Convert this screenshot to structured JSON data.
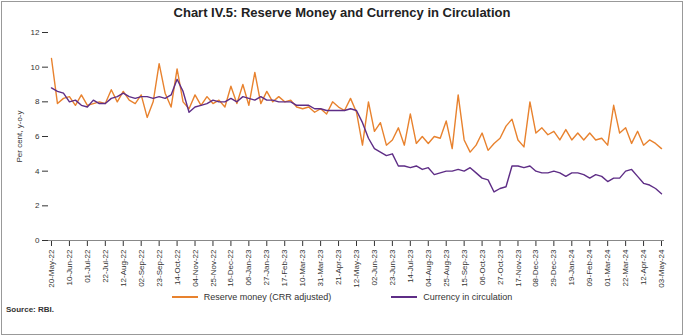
{
  "chart_data": {
    "type": "line",
    "title": "Chart IV.5: Reserve Money and Currency in Circulation",
    "y_label": "Per cent, y-o-y",
    "source": "Source: RBI.",
    "categories": [
      "20-May-22",
      null,
      null,
      "10-Jun-22",
      null,
      null,
      "01-Jul-22",
      null,
      null,
      "22-Jul-22",
      null,
      null,
      "12-Aug-22",
      null,
      null,
      "02-Sep-22",
      null,
      null,
      "23-Sep-22",
      null,
      null,
      "14-Oct-22",
      null,
      null,
      "04-Nov-22",
      null,
      null,
      "25-Nov-22",
      null,
      null,
      "16-Dec-22",
      null,
      null,
      "06-Jan-23",
      null,
      null,
      "27-Jan-23",
      null,
      null,
      "17-Feb-23",
      null,
      null,
      "10-Mar-23",
      null,
      null,
      "31-Mar-23",
      null,
      null,
      "21-Apr-23",
      null,
      null,
      "12-May-23",
      null,
      null,
      "02-Jun-23",
      null,
      null,
      "23-Jun-23",
      null,
      null,
      "14-Jul-23",
      null,
      null,
      "04-Aug-23",
      null,
      null,
      "25-Aug-23",
      null,
      null,
      "15-Sep-23",
      null,
      null,
      "06-Oct-23",
      null,
      null,
      "27-Oct-23",
      null,
      null,
      "17-Nov-23",
      null,
      null,
      "08-Dec-23",
      null,
      null,
      "29-Dec-23",
      null,
      null,
      "19-Jan-24",
      null,
      null,
      "09-Feb-24",
      null,
      null,
      "01-Mar-24",
      null,
      null,
      "22-Mar-24",
      null,
      null,
      "12-Apr-24",
      null,
      null,
      "03-May-24"
    ],
    "series": [
      {
        "name": "Reserve money (CRR adjusted)",
        "color": "#E8822E",
        "values": [
          10.5,
          7.9,
          8.2,
          8.3,
          7.8,
          8.4,
          7.8,
          7.9,
          8.0,
          7.9,
          8.7,
          8.0,
          8.6,
          8.1,
          7.9,
          8.4,
          7.1,
          8.0,
          10.2,
          8.5,
          7.7,
          9.9,
          8.0,
          7.6,
          8.4,
          7.8,
          8.3,
          7.9,
          8.1,
          7.7,
          8.9,
          7.9,
          9.0,
          7.8,
          9.7,
          7.9,
          8.6,
          8.0,
          8.3,
          8.0,
          8.1,
          7.7,
          7.6,
          7.7,
          7.4,
          7.6,
          7.3,
          8.0,
          7.7,
          7.5,
          8.2,
          7.4,
          5.5,
          8.0,
          6.3,
          6.8,
          5.5,
          5.8,
          6.5,
          5.5,
          7.3,
          5.6,
          6.0,
          5.6,
          6.0,
          5.9,
          6.9,
          5.3,
          8.4,
          5.8,
          5.1,
          5.5,
          6.2,
          5.2,
          5.6,
          5.9,
          6.6,
          7.0,
          5.8,
          5.4,
          8.0,
          6.2,
          6.5,
          6.1,
          6.3,
          5.8,
          6.4,
          5.8,
          6.2,
          5.8,
          6.2,
          5.8,
          5.9,
          5.5,
          7.8,
          6.2,
          6.5,
          5.6,
          6.3,
          5.5,
          5.8,
          5.6,
          5.3
        ]
      },
      {
        "name": "Currency in circulation",
        "color": "#5E2D86",
        "values": [
          8.8,
          8.6,
          8.5,
          8.0,
          8.1,
          7.8,
          7.7,
          8.1,
          7.9,
          7.9,
          8.2,
          8.3,
          8.5,
          8.3,
          8.2,
          8.3,
          8.3,
          8.2,
          8.3,
          8.2,
          8.4,
          9.3,
          8.6,
          7.4,
          7.7,
          7.8,
          7.9,
          8.1,
          8.0,
          8.0,
          8.2,
          8.0,
          8.3,
          8.2,
          8.1,
          8.3,
          8.1,
          8.1,
          8.0,
          8.0,
          8.0,
          7.8,
          7.8,
          7.8,
          7.6,
          7.6,
          7.5,
          7.5,
          7.5,
          7.5,
          7.6,
          7.5,
          6.8,
          5.9,
          5.3,
          5.1,
          4.9,
          5.0,
          4.3,
          4.3,
          4.2,
          4.3,
          4.1,
          4.2,
          3.8,
          3.9,
          4.0,
          4.0,
          4.1,
          4.0,
          4.2,
          3.9,
          3.6,
          3.5,
          2.8,
          3.0,
          3.1,
          4.3,
          4.3,
          4.2,
          4.3,
          4.0,
          3.9,
          3.9,
          4.0,
          3.9,
          3.7,
          3.9,
          3.9,
          3.8,
          3.6,
          3.8,
          3.7,
          3.4,
          3.6,
          3.6,
          4.0,
          4.1,
          3.7,
          3.3,
          3.2,
          3.0,
          2.7
        ]
      }
    ],
    "ylim": [
      0,
      12
    ],
    "yticks": [
      0,
      2,
      4,
      6,
      8,
      10,
      12
    ],
    "grid": false,
    "legend": "bottom"
  }
}
